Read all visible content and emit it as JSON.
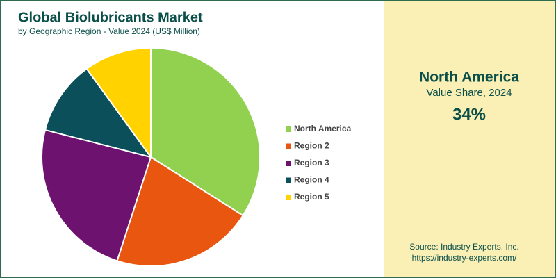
{
  "chart_data": {
    "type": "pie",
    "title": "Global Biolubricants Market",
    "subtitle": "by Geographic Region - Value 2024 (US$ Million)",
    "categories": [
      "North America",
      "Region 2",
      "Region 3",
      "Region 4",
      "Region 5"
    ],
    "values": [
      34,
      21,
      24,
      11,
      10
    ],
    "colors": [
      "#92d050",
      "#e8560f",
      "#6e1270",
      "#0b4f5a",
      "#ffd200"
    ],
    "legend": "right"
  },
  "panel": {
    "heading": "North America",
    "caption": "Value Share, 2024",
    "value_label": "34%"
  },
  "source": {
    "line1": "Source: Industry Experts, Inc.",
    "line2": "https://industry-experts.com/"
  }
}
